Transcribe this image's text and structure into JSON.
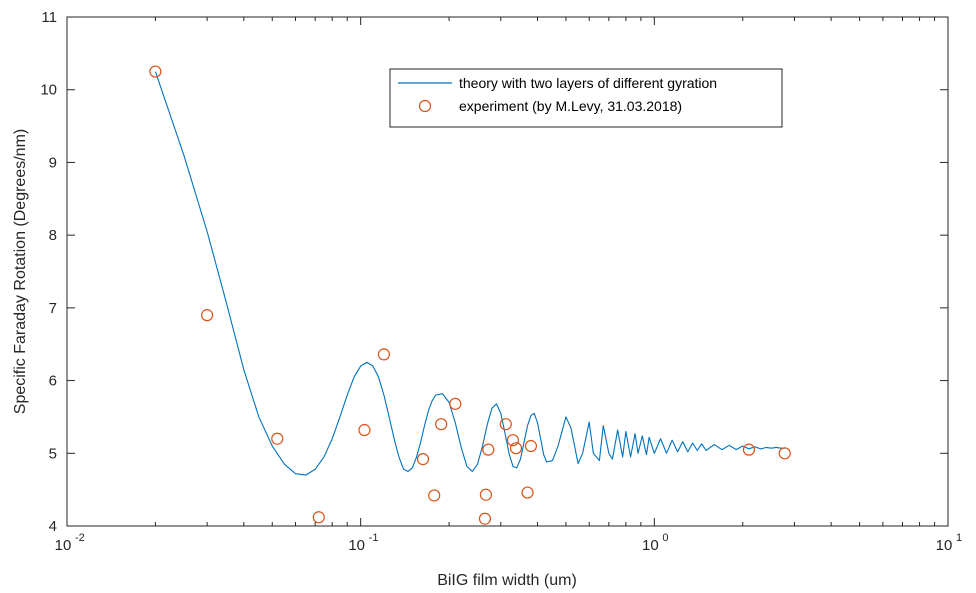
{
  "chart_data": {
    "type": "scatter",
    "xscale": "log",
    "xlim": [
      0.01,
      10
    ],
    "ylim": [
      4,
      11
    ],
    "xlabel": "BiIG film width (um)",
    "ylabel": "Specific Faraday Rotation (Degrees/nm)",
    "x_tick_labels": [
      {
        "base": "10",
        "exp": "-2"
      },
      {
        "base": "10",
        "exp": "-1"
      },
      {
        "base": "10",
        "exp": "0"
      },
      {
        "base": "10",
        "exp": "1"
      }
    ],
    "y_ticks": [
      4,
      5,
      6,
      7,
      8,
      9,
      10,
      11
    ],
    "legend_position": "top-center",
    "colors": {
      "theory": "#0072BD",
      "experiment": "#D95319",
      "axes": "#262626"
    },
    "series": [
      {
        "name": "theory with two layers of different gyration",
        "style": "line",
        "x": [
          0.02,
          0.025,
          0.03,
          0.035,
          0.04,
          0.045,
          0.05,
          0.055,
          0.06,
          0.065,
          0.07,
          0.075,
          0.08,
          0.085,
          0.09,
          0.095,
          0.1,
          0.105,
          0.11,
          0.115,
          0.12,
          0.125,
          0.13,
          0.135,
          0.14,
          0.145,
          0.15,
          0.155,
          0.16,
          0.165,
          0.17,
          0.175,
          0.18,
          0.19,
          0.2,
          0.21,
          0.22,
          0.23,
          0.24,
          0.25,
          0.26,
          0.27,
          0.28,
          0.29,
          0.3,
          0.31,
          0.32,
          0.33,
          0.34,
          0.35,
          0.36,
          0.37,
          0.38,
          0.39,
          0.4,
          0.41,
          0.42,
          0.43,
          0.45,
          0.47,
          0.5,
          0.52,
          0.55,
          0.57,
          0.6,
          0.62,
          0.65,
          0.67,
          0.7,
          0.72,
          0.75,
          0.78,
          0.8,
          0.83,
          0.86,
          0.88,
          0.91,
          0.94,
          0.96,
          1.0,
          1.05,
          1.1,
          1.15,
          1.2,
          1.25,
          1.3,
          1.35,
          1.4,
          1.45,
          1.5,
          1.6,
          1.7,
          1.8,
          1.9,
          2.0,
          2.1,
          2.2,
          2.3,
          2.4,
          2.5,
          2.6,
          2.7,
          2.8
        ],
        "y": [
          10.25,
          9.1,
          8.05,
          7.05,
          6.15,
          5.5,
          5.1,
          4.85,
          4.72,
          4.7,
          4.78,
          4.95,
          5.2,
          5.5,
          5.8,
          6.05,
          6.2,
          6.25,
          6.2,
          6.05,
          5.8,
          5.5,
          5.2,
          4.95,
          4.78,
          4.75,
          4.8,
          4.95,
          5.15,
          5.38,
          5.58,
          5.72,
          5.8,
          5.82,
          5.7,
          5.42,
          5.08,
          4.82,
          4.75,
          4.85,
          5.1,
          5.4,
          5.62,
          5.68,
          5.55,
          5.28,
          5.0,
          4.82,
          4.8,
          4.92,
          5.15,
          5.38,
          5.52,
          5.55,
          5.42,
          5.2,
          4.98,
          4.88,
          4.9,
          5.1,
          5.5,
          5.35,
          4.86,
          5.0,
          5.43,
          5.0,
          4.9,
          5.38,
          5.0,
          4.92,
          5.32,
          4.95,
          5.3,
          4.95,
          5.27,
          5.0,
          5.24,
          4.98,
          5.22,
          5.0,
          5.2,
          5.0,
          5.18,
          5.02,
          5.16,
          5.02,
          5.14,
          5.04,
          5.13,
          5.04,
          5.12,
          5.05,
          5.11,
          5.05,
          5.1,
          5.06,
          5.09,
          5.06,
          5.08,
          5.07,
          5.08,
          5.07,
          5.07
        ]
      },
      {
        "name": "experiment (by M.Levy, 31.03.2018)",
        "style": "markers",
        "x": [
          0.02,
          0.03,
          0.052,
          0.072,
          0.103,
          0.12,
          0.163,
          0.178,
          0.188,
          0.21,
          0.265,
          0.267,
          0.272,
          0.312,
          0.33,
          0.338,
          0.37,
          0.38,
          2.1,
          2.78
        ],
        "y": [
          10.25,
          6.9,
          5.2,
          4.12,
          5.32,
          6.36,
          4.92,
          4.42,
          5.4,
          5.68,
          4.1,
          4.43,
          5.05,
          5.4,
          5.18,
          5.07,
          4.46,
          5.1,
          5.05,
          5.0
        ]
      }
    ]
  }
}
